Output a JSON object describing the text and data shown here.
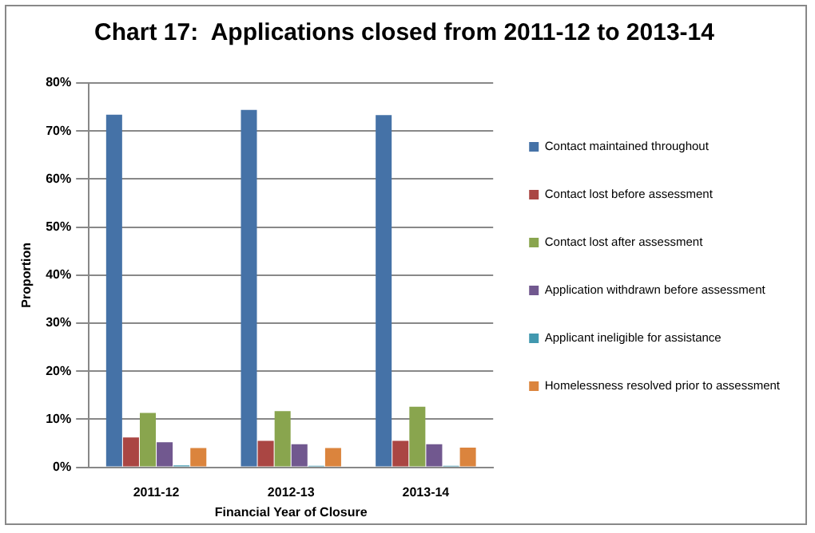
{
  "chart_data": {
    "type": "bar",
    "title": "Chart 17:  Applications closed from 2011-12 to 2013-14",
    "xlabel": "Financial Year of Closure",
    "ylabel": "Proportion",
    "categories": [
      "2011-12",
      "2012-13",
      "2013-14"
    ],
    "series": [
      {
        "name": "Contact maintained throughout",
        "color": "#4572a7",
        "values": [
          73.4,
          74.4,
          73.3
        ]
      },
      {
        "name": "Contact lost before assessment",
        "color": "#aa4643",
        "values": [
          6.2,
          5.5,
          5.5
        ]
      },
      {
        "name": "Contact lost after assessment",
        "color": "#89a54e",
        "values": [
          11.3,
          11.7,
          12.6
        ]
      },
      {
        "name": "Application withdrawn before assessment",
        "color": "#71588f",
        "values": [
          5.2,
          4.8,
          4.8
        ]
      },
      {
        "name": "Applicant ineligible for assistance",
        "color": "#4198af",
        "values": [
          0.4,
          0.3,
          0.3
        ]
      },
      {
        "name": "Homelessness resolved prior to assessment",
        "color": "#db843d",
        "values": [
          4.0,
          4.0,
          4.1
        ]
      }
    ],
    "ylim": [
      0,
      80
    ],
    "yticks": [
      {
        "value": 0,
        "label": "0%"
      },
      {
        "value": 10,
        "label": "10%"
      },
      {
        "value": 20,
        "label": "20%"
      },
      {
        "value": 30,
        "label": "30%"
      },
      {
        "value": 40,
        "label": "40%"
      },
      {
        "value": 50,
        "label": "50%"
      },
      {
        "value": 60,
        "label": "60%"
      },
      {
        "value": 70,
        "label": "70%"
      },
      {
        "value": 80,
        "label": "80%"
      }
    ],
    "grid": "y",
    "legend": "right"
  }
}
